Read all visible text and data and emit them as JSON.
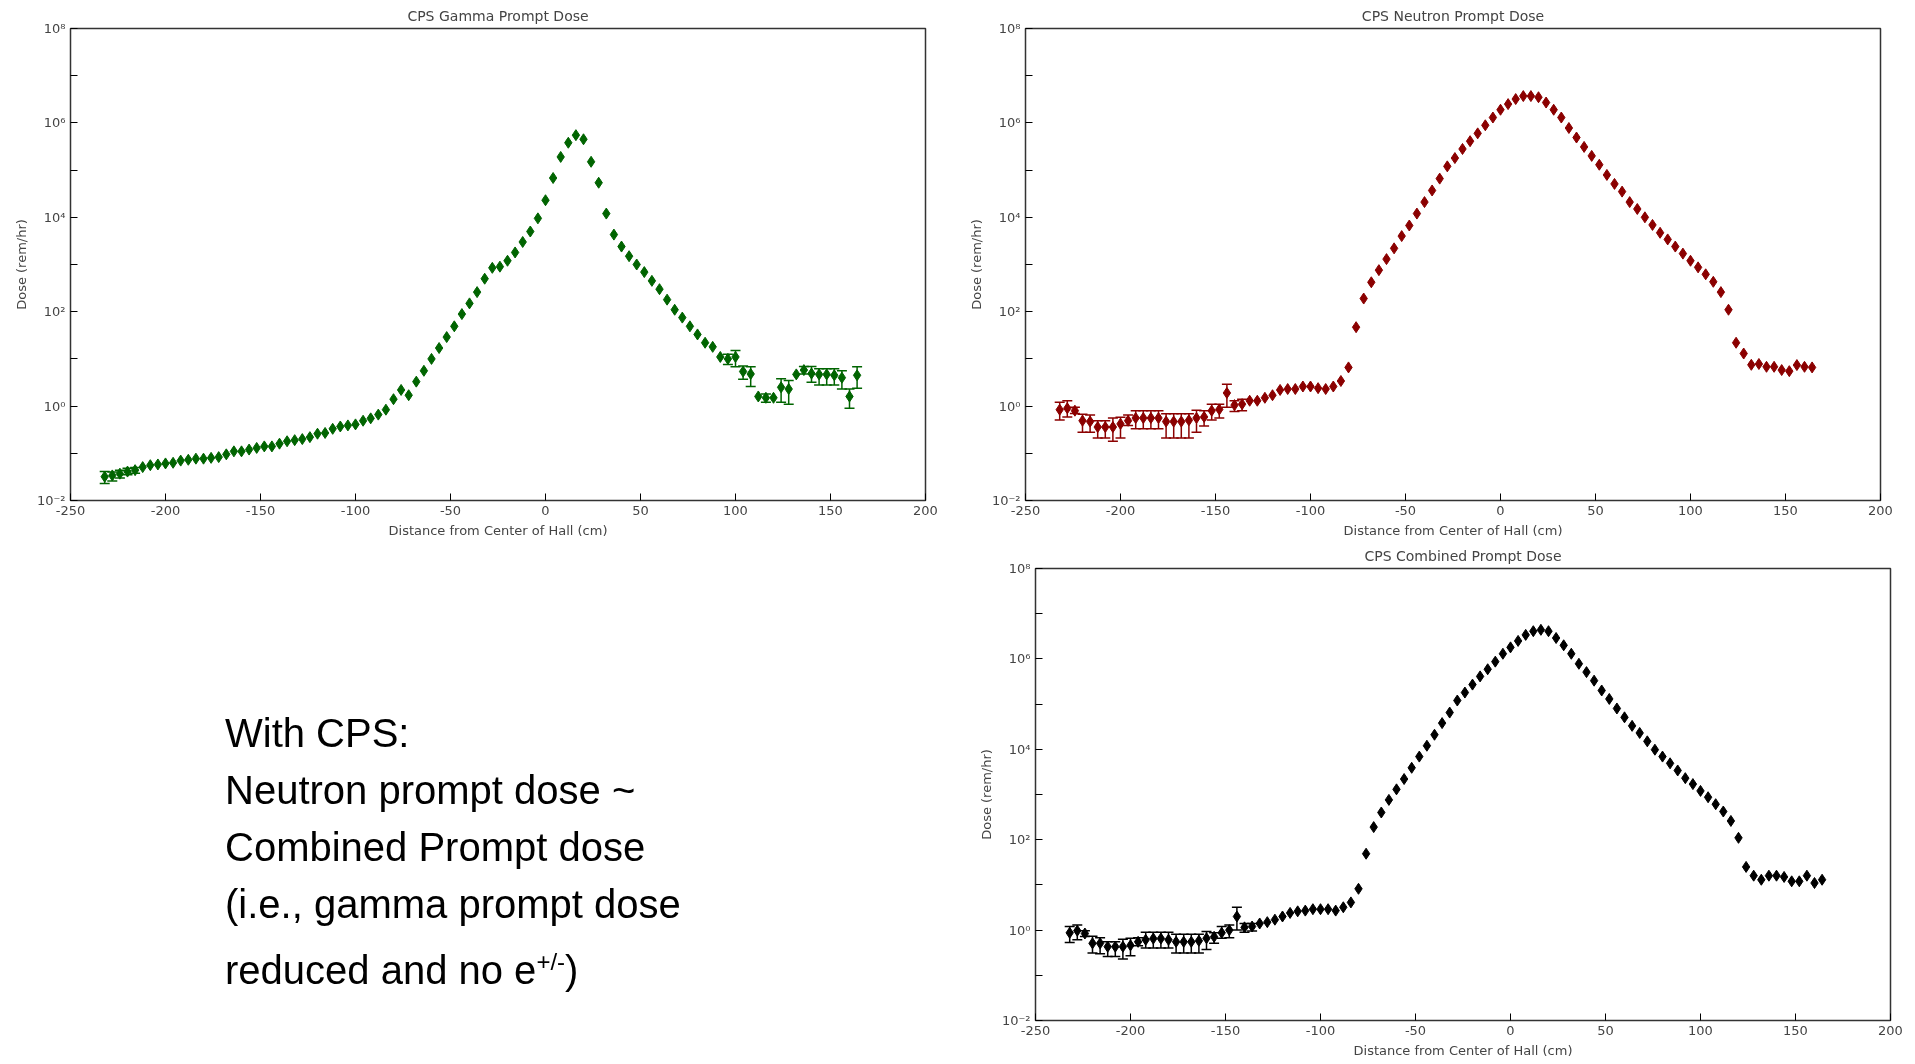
{
  "chart_data": [
    {
      "type": "scatter",
      "title": "CPS Gamma Prompt Dose",
      "xlabel": "Distance from Center of Hall (cm)",
      "ylabel": "Dose (rem/hr)",
      "log": "y",
      "marker": "diamond",
      "xlim": [
        -250,
        200
      ],
      "xticks": [
        -250,
        -200,
        -150,
        -100,
        -50,
        0,
        50,
        100,
        150,
        200
      ],
      "ylim": [
        0.01,
        100000000
      ],
      "yticks": [
        {
          "value": 0.01,
          "label": "10⁻²"
        },
        {
          "value": 0.1,
          "label": null
        },
        {
          "value": 1,
          "label": "10⁰"
        },
        {
          "value": 10,
          "label": null
        },
        {
          "value": 100,
          "label": "10²"
        },
        {
          "value": 1000,
          "label": null
        },
        {
          "value": 10000,
          "label": "10⁴"
        },
        {
          "value": 100000,
          "label": null
        },
        {
          "value": 1000000,
          "label": "10⁶"
        },
        {
          "value": 10000000,
          "label": null
        },
        {
          "value": 100000000,
          "label": "10⁸"
        }
      ],
      "x": [
        -232,
        -228,
        -224,
        -220,
        -216,
        -212,
        -208,
        -204,
        -200,
        -196,
        -192,
        -188,
        -184,
        -180,
        -176,
        -172,
        -168,
        -164,
        -160,
        -156,
        -152,
        -148,
        -144,
        -140,
        -136,
        -132,
        -128,
        -124,
        -120,
        -116,
        -112,
        -108,
        -104,
        -100,
        -96,
        -92,
        -88,
        -84,
        -80,
        -76,
        -72,
        -68,
        -64,
        -60,
        -56,
        -52,
        -48,
        -44,
        -40,
        -36,
        -32,
        -28,
        -24,
        -20,
        -16,
        -12,
        -8,
        -4,
        0,
        4,
        8,
        12,
        16,
        20,
        24,
        28,
        32,
        36,
        40,
        44,
        48,
        52,
        56,
        60,
        64,
        68,
        72,
        76,
        80,
        84,
        88,
        92,
        96,
        100,
        104,
        108,
        112,
        116,
        120,
        124,
        128,
        132,
        136,
        140,
        144,
        148,
        152,
        156,
        160,
        164
      ],
      "series": [
        {
          "color": "#006400",
          "values": [
            0.032,
            0.034,
            0.037,
            0.041,
            0.044,
            0.051,
            0.056,
            0.058,
            0.061,
            0.063,
            0.07,
            0.073,
            0.077,
            0.077,
            0.08,
            0.083,
            0.095,
            0.11,
            0.11,
            0.12,
            0.13,
            0.14,
            0.14,
            0.16,
            0.18,
            0.19,
            0.2,
            0.22,
            0.26,
            0.27,
            0.33,
            0.37,
            0.39,
            0.41,
            0.49,
            0.55,
            0.66,
            0.84,
            1.4,
            2.2,
            1.7,
            3.3,
            5.6,
            10,
            17,
            29,
            49,
            89,
            150,
            260,
            500,
            850,
            900,
            1200,
            1800,
            3000,
            5000,
            9500,
            23000,
            68000,
            190000,
            380000,
            550000,
            450000,
            150000,
            54000,
            12000,
            4300,
            2400,
            1500,
            1000,
            690,
            450,
            300,
            180,
            110,
            75,
            49,
            33,
            22,
            18,
            11,
            10,
            11,
            5.4,
            4.8,
            1.6,
            1.5,
            1.5,
            2.5,
            2.3,
            4.7,
            5.8,
            4.9,
            4.7,
            4.7,
            4.5,
            4.0,
            1.6,
            4.5
          ],
          "errors": [
            [
              0.023,
              0.041
            ],
            [
              0.026,
              0.04
            ],
            [
              0.03,
              0.044
            ],
            [
              0.035,
              0.048
            ],
            [
              0.038,
              0.05
            ],
            null,
            null,
            null,
            null,
            null,
            null,
            null,
            null,
            null,
            null,
            null,
            null,
            null,
            null,
            null,
            null,
            null,
            null,
            null,
            null,
            null,
            null,
            null,
            null,
            null,
            null,
            null,
            null,
            null,
            null,
            null,
            null,
            null,
            null,
            null,
            null,
            null,
            null,
            null,
            null,
            null,
            null,
            null,
            null,
            null,
            null,
            null,
            null,
            null,
            null,
            null,
            null,
            null,
            null,
            null,
            null,
            null,
            null,
            null,
            null,
            null,
            null,
            null,
            null,
            null,
            null,
            null,
            null,
            null,
            null,
            null,
            null,
            null,
            null,
            null,
            null,
            null,
            [
              7.6,
              12.6
            ],
            [
              6.8,
              15
            ],
            [
              3.7,
              7.1
            ],
            [
              2.6,
              6.8
            ],
            null,
            [
              1.2,
              1.8
            ],
            null,
            [
              1.2,
              3.8
            ],
            [
              1.1,
              3.5
            ],
            null,
            [
              4.8,
              6.9
            ],
            [
              3.2,
              6.9
            ],
            [
              2.8,
              6.2
            ],
            [
              2.8,
              6.2
            ],
            [
              2.8,
              6.2
            ],
            [
              2.3,
              5.6
            ],
            [
              0.9,
              2.3
            ],
            [
              2.4,
              6.8
            ]
          ]
        }
      ]
    },
    {
      "type": "scatter",
      "title": "CPS Neutron Prompt Dose",
      "xlabel": "Distance from Center of Hall (cm)",
      "ylabel": "Dose (rem/hr)",
      "log": "y",
      "marker": "diamond",
      "xlim": [
        -250,
        200
      ],
      "xticks": [
        -250,
        -200,
        -150,
        -100,
        -50,
        0,
        50,
        100,
        150,
        200
      ],
      "ylim": [
        0.01,
        100000000
      ],
      "yticks": [
        {
          "value": 0.01,
          "label": "10⁻²"
        },
        {
          "value": 0.1,
          "label": null
        },
        {
          "value": 1,
          "label": "10⁰"
        },
        {
          "value": 10,
          "label": null
        },
        {
          "value": 100,
          "label": "10²"
        },
        {
          "value": 1000,
          "label": null
        },
        {
          "value": 10000,
          "label": "10⁴"
        },
        {
          "value": 100000,
          "label": null
        },
        {
          "value": 1000000,
          "label": "10⁶"
        },
        {
          "value": 10000000,
          "label": null
        },
        {
          "value": 100000000,
          "label": "10⁸"
        }
      ],
      "x": [
        -232,
        -228,
        -224,
        -220,
        -216,
        -212,
        -208,
        -204,
        -200,
        -196,
        -192,
        -188,
        -184,
        -180,
        -176,
        -172,
        -168,
        -164,
        -160,
        -156,
        -152,
        -148,
        -144,
        -140,
        -136,
        -132,
        -128,
        -124,
        -120,
        -116,
        -112,
        -108,
        -104,
        -100,
        -96,
        -92,
        -88,
        -84,
        -80,
        -76,
        -72,
        -68,
        -64,
        -60,
        -56,
        -52,
        -48,
        -44,
        -40,
        -36,
        -32,
        -28,
        -24,
        -20,
        -16,
        -12,
        -8,
        -4,
        0,
        4,
        8,
        12,
        16,
        20,
        24,
        28,
        32,
        36,
        40,
        44,
        48,
        52,
        56,
        60,
        64,
        68,
        72,
        76,
        80,
        84,
        88,
        92,
        96,
        100,
        104,
        108,
        112,
        116,
        120,
        124,
        128,
        132,
        136,
        140,
        144,
        148,
        152,
        156,
        160,
        164
      ],
      "series": [
        {
          "color": "#8b0000",
          "values": [
            0.84,
            0.9,
            0.8,
            0.49,
            0.47,
            0.36,
            0.36,
            0.36,
            0.42,
            0.49,
            0.56,
            0.56,
            0.56,
            0.56,
            0.47,
            0.47,
            0.47,
            0.5,
            0.56,
            0.59,
            0.8,
            0.85,
            1.9,
            1.05,
            1.1,
            1.3,
            1.3,
            1.5,
            1.7,
            2.2,
            2.3,
            2.3,
            2.6,
            2.6,
            2.4,
            2.3,
            2.6,
            3.4,
            6.6,
            47,
            190,
            420,
            760,
            1300,
            2200,
            4000,
            6700,
            12000,
            21000,
            37000,
            66000,
            120000,
            180000,
            280000,
            410000,
            600000,
            890000,
            1300000,
            1900000,
            2500000,
            3200000,
            3700000,
            3700000,
            3500000,
            2700000,
            1900000,
            1300000,
            780000,
            490000,
            310000,
            200000,
            130000,
            79000,
            51000,
            35000,
            21000,
            15000,
            10000,
            6900,
            4700,
            3400,
            2400,
            1700,
            1200,
            870,
            620,
            430,
            260,
            110,
            22,
            13,
            7.5,
            7.8,
            6.8,
            6.8,
            5.8,
            5.5,
            7.4,
            6.8,
            6.6
          ],
          "errors": [
            [
              0.51,
              1.2
            ],
            [
              0.59,
              1.3
            ],
            [
              0.7,
              0.95
            ],
            [
              0.28,
              0.67
            ],
            [
              0.28,
              0.65
            ],
            [
              0.21,
              0.49
            ],
            [
              0.21,
              0.49
            ],
            [
              0.18,
              0.56
            ],
            [
              0.21,
              0.58
            ],
            [
              0.39,
              0.65
            ],
            [
              0.33,
              0.8
            ],
            [
              0.33,
              0.8
            ],
            [
              0.33,
              0.8
            ],
            [
              0.33,
              0.8
            ],
            [
              0.21,
              0.69
            ],
            [
              0.21,
              0.69
            ],
            [
              0.21,
              0.69
            ],
            [
              0.21,
              0.69
            ],
            [
              0.28,
              0.82
            ],
            [
              0.38,
              0.8
            ],
            [
              0.51,
              1.1
            ],
            [
              0.56,
              1.1
            ],
            [
              0.95,
              2.9
            ],
            [
              0.77,
              1.3
            ],
            [
              0.8,
              1.4
            ],
            null,
            null,
            null,
            null,
            null,
            null,
            null,
            null,
            null,
            null,
            null,
            null,
            null,
            null,
            null,
            null,
            null,
            null,
            null,
            null,
            null,
            null,
            null,
            null,
            null,
            null,
            null,
            null,
            null,
            null,
            null,
            null,
            null,
            null,
            null,
            null,
            null,
            null,
            null,
            null,
            null,
            null,
            null,
            null,
            null,
            null,
            null,
            null,
            null,
            null,
            null,
            null,
            null,
            null,
            null,
            null,
            null,
            null,
            null,
            null,
            null,
            null,
            null,
            null,
            null,
            null,
            null,
            null,
            null,
            null,
            null,
            null,
            null,
            null,
            null
          ]
        }
      ]
    },
    {
      "type": "other",
      "annotations": [
        "With CPS:",
        "Neutron prompt dose ~",
        "Combined Prompt dose",
        "(i.e., gamma prompt dose",
        "reduced and no e$^{+/-}$)"
      ]
    },
    {
      "type": "scatter",
      "title": "CPS Combined Prompt Dose",
      "xlabel": "Distance from Center of Hall (cm)",
      "ylabel": "Dose (rem/hr)",
      "log": "y",
      "marker": "diamond",
      "xlim": [
        -250,
        200
      ],
      "xticks": [
        -250,
        -200,
        -150,
        -100,
        -50,
        0,
        50,
        100,
        150,
        200
      ],
      "ylim": [
        0.01,
        100000000
      ],
      "yticks": [
        {
          "value": 0.01,
          "label": "10⁻²"
        },
        {
          "value": 0.1,
          "label": null
        },
        {
          "value": 1,
          "label": "10⁰"
        },
        {
          "value": 10,
          "label": null
        },
        {
          "value": 100,
          "label": "10²"
        },
        {
          "value": 1000,
          "label": null
        },
        {
          "value": 10000,
          "label": "10⁴"
        },
        {
          "value": 100000,
          "label": null
        },
        {
          "value": 1000000,
          "label": "10⁶"
        },
        {
          "value": 10000000,
          "label": null
        },
        {
          "value": 100000000,
          "label": "10⁸"
        }
      ],
      "x": [
        -232,
        -228,
        -224,
        -220,
        -216,
        -212,
        -208,
        -204,
        -200,
        -196,
        -192,
        -188,
        -184,
        -180,
        -176,
        -172,
        -168,
        -164,
        -160,
        -156,
        -152,
        -148,
        -144,
        -140,
        -136,
        -132,
        -128,
        -124,
        -120,
        -116,
        -112,
        -108,
        -104,
        -100,
        -96,
        -92,
        -88,
        -84,
        -80,
        -76,
        -72,
        -68,
        -64,
        -60,
        -56,
        -52,
        -48,
        -44,
        -40,
        -36,
        -32,
        -28,
        -24,
        -20,
        -16,
        -12,
        -8,
        -4,
        0,
        4,
        8,
        12,
        16,
        20,
        24,
        28,
        32,
        36,
        40,
        44,
        48,
        52,
        56,
        60,
        64,
        68,
        72,
        76,
        80,
        84,
        88,
        92,
        96,
        100,
        104,
        108,
        112,
        116,
        120,
        124,
        128,
        132,
        136,
        140,
        144,
        148,
        152,
        156,
        160,
        164
      ],
      "series": [
        {
          "color": "#000000",
          "values": [
            0.87,
            0.97,
            0.84,
            0.51,
            0.51,
            0.43,
            0.43,
            0.43,
            0.46,
            0.55,
            0.61,
            0.65,
            0.65,
            0.61,
            0.55,
            0.55,
            0.55,
            0.58,
            0.66,
            0.71,
            0.87,
            1.0,
            2.0,
            1.15,
            1.2,
            1.4,
            1.5,
            1.7,
            2.0,
            2.4,
            2.6,
            2.7,
            2.9,
            2.9,
            2.9,
            2.7,
            3.2,
            4.1,
            8.2,
            49,
            190,
            400,
            760,
            1300,
            2200,
            3900,
            6900,
            12000,
            21000,
            38000,
            65000,
            120000,
            180000,
            270000,
            410000,
            590000,
            870000,
            1300000,
            1800000,
            2500000,
            3400000,
            4100000,
            4400000,
            4100000,
            2900000,
            2000000,
            1300000,
            780000,
            510000,
            330000,
            200000,
            130000,
            80000,
            51000,
            33000,
            23000,
            15000,
            9800,
            6900,
            4900,
            3400,
            2300,
            1700,
            1200,
            870,
            610,
            420,
            260,
            110,
            25,
            16,
            13,
            16,
            16,
            15,
            12,
            12,
            16,
            11,
            13
          ],
          "errors": [
            [
              0.53,
              1.2
            ],
            [
              0.61,
              1.3
            ],
            [
              0.72,
              0.97
            ],
            [
              0.31,
              0.73
            ],
            [
              0.3,
              0.68
            ],
            [
              0.26,
              0.55
            ],
            [
              0.26,
              0.55
            ],
            [
              0.23,
              0.63
            ],
            [
              0.27,
              0.66
            ],
            [
              0.45,
              0.68
            ],
            [
              0.4,
              0.9
            ],
            [
              0.4,
              0.9
            ],
            [
              0.4,
              0.9
            ],
            [
              0.4,
              0.9
            ],
            [
              0.31,
              0.81
            ],
            [
              0.31,
              0.81
            ],
            [
              0.31,
              0.81
            ],
            [
              0.31,
              0.81
            ],
            [
              0.37,
              0.93
            ],
            [
              0.51,
              0.87
            ],
            [
              0.66,
              1.2
            ],
            [
              0.68,
              1.3
            ],
            [
              1.0,
              3.2
            ],
            [
              0.9,
              1.4
            ],
            [
              0.95,
              1.4
            ],
            null,
            null,
            null,
            null,
            null,
            null,
            null,
            null,
            null,
            null,
            null,
            null,
            null,
            null,
            null,
            null,
            null,
            null,
            null,
            null,
            null,
            null,
            null,
            null,
            null,
            null,
            null,
            null,
            null,
            null,
            null,
            null,
            null,
            null,
            null,
            null,
            null,
            null,
            null,
            null,
            null,
            null,
            null,
            null,
            null,
            null,
            null,
            null,
            null,
            null,
            null,
            null,
            null,
            null,
            null,
            null,
            null,
            null,
            null,
            null,
            null,
            null,
            null,
            null,
            null,
            null,
            null,
            null,
            null,
            null,
            null,
            null,
            null,
            null,
            null
          ]
        }
      ]
    }
  ]
}
